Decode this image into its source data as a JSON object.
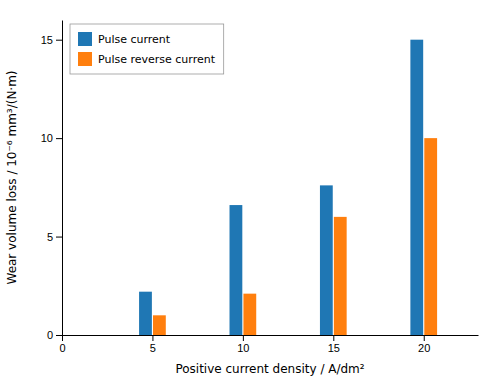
{
  "chart_data": {
    "type": "bar",
    "x": [
      5,
      10,
      15,
      20
    ],
    "series": [
      {
        "name": "Pulse current",
        "values": [
          2.2,
          6.6,
          7.6,
          15.0
        ]
      },
      {
        "name": "Pulse reverse current",
        "values": [
          1.0,
          2.1,
          6.0,
          10.0
        ]
      }
    ],
    "x_label": "Positive current density / A/dm²",
    "y_label": "Wear volume loss / 10⁻⁶ mm³/(N·m)",
    "xlim": [
      0,
      23
    ],
    "xticks": [
      0,
      5,
      10,
      15,
      20
    ],
    "ylim": [
      0,
      16
    ],
    "yticks": [
      0,
      5,
      10,
      15
    ],
    "legend": "upper left"
  }
}
